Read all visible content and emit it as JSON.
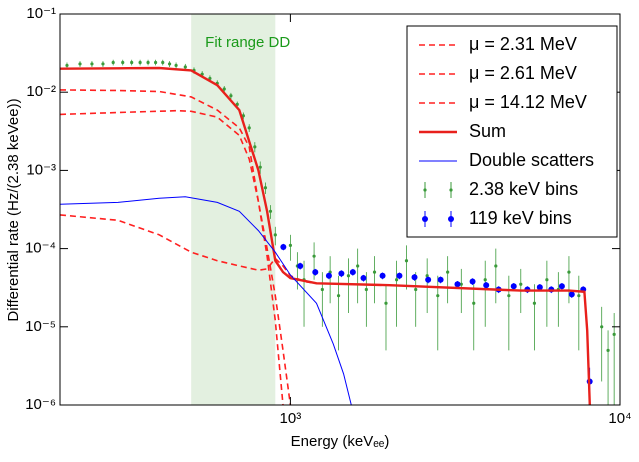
{
  "chart_data": {
    "type": "line",
    "xlabel": "Energy (keVₑₑ)",
    "ylabel": "Differential rate (Hz/(2.38 keVee))",
    "xscale": "log",
    "yscale": "log",
    "xlim": [
      200,
      10000
    ],
    "ylim": [
      1e-06,
      0.1
    ],
    "xticks": [
      {
        "value": 1000,
        "label": "10³"
      },
      {
        "value": 10000,
        "label": "10⁴"
      }
    ],
    "yticks": [
      {
        "value": 1e-06,
        "label": "10⁻⁶"
      },
      {
        "value": 1e-05,
        "label": "10⁻⁵"
      },
      {
        "value": 0.0001,
        "label": "10⁻⁴"
      },
      {
        "value": 0.001,
        "label": "10⁻³"
      },
      {
        "value": 0.01,
        "label": "10⁻²"
      },
      {
        "value": 0.1,
        "label": "10⁻¹"
      }
    ],
    "span": {
      "label": "Fit range DD",
      "x": [
        500,
        900
      ],
      "color": "#e3f0e0",
      "text_color": "#1a9a1a"
    },
    "legend": "upper right",
    "series": [
      {
        "name": "μ = 2.31 MeV",
        "style": "dashed",
        "color": "#ff2020",
        "x": [
          200,
          300,
          400,
          500,
          600,
          700,
          750,
          800,
          850,
          900,
          950
        ],
        "values": [
          0.0107,
          0.0105,
          0.0102,
          0.0087,
          0.0059,
          0.0035,
          0.002,
          0.0004,
          8e-05,
          1.2e-05,
          1e-06
        ]
      },
      {
        "name": "μ = 2.61 MeV",
        "style": "dashed",
        "color": "#ff2020",
        "x": [
          200,
          300,
          450,
          500,
          600,
          700,
          750,
          800,
          850,
          900,
          950,
          1000
        ],
        "values": [
          0.0052,
          0.0055,
          0.0058,
          0.0057,
          0.0048,
          0.0028,
          0.0014,
          0.0004,
          0.0001,
          2.5e-05,
          5e-06,
          1e-06
        ]
      },
      {
        "name": "μ = 14.12 MeV",
        "style": "dashed",
        "color": "#ff2020",
        "x": [
          200,
          300,
          400,
          500,
          600,
          700,
          800,
          850,
          900,
          950,
          1000,
          1100,
          1200,
          2000,
          5000,
          7000,
          7800,
          7950,
          8100
        ],
        "values": [
          0.00027,
          0.00023,
          0.00015,
          9e-05,
          7e-05,
          6e-05,
          5.3e-05,
          5.5e-05,
          7.5e-05,
          6e-05,
          4.5e-05,
          3.8e-05,
          3.6e-05,
          3.4e-05,
          2.9e-05,
          2.9e-05,
          2.8e-05,
          9e-06,
          1e-06
        ]
      },
      {
        "name": "Sum",
        "style": "solid",
        "color": "#e8201c",
        "x": [
          200,
          300,
          400,
          500,
          600,
          700,
          800,
          850,
          900,
          950,
          1000,
          1200,
          2000,
          5000,
          7000,
          7800,
          7950,
          8100
        ],
        "values": [
          0.02,
          0.0202,
          0.0204,
          0.019,
          0.0123,
          0.0059,
          0.001,
          0.0003,
          7e-05,
          5e-05,
          4.2e-05,
          3.6e-05,
          3.4e-05,
          2.9e-05,
          2.9e-05,
          2.8e-05,
          9e-06,
          1e-06
        ]
      },
      {
        "name": "Double scatters",
        "style": "thin",
        "color": "#0000ff",
        "x": [
          200,
          300,
          400,
          480,
          600,
          700,
          800,
          900,
          1000,
          1200,
          1350,
          1450,
          1530
        ],
        "values": [
          0.00037,
          0.00039,
          0.00044,
          0.00046,
          0.00039,
          0.0003,
          0.00017,
          9e-05,
          4.6e-05,
          2e-05,
          6e-06,
          2.5e-06,
          1e-06
        ]
      },
      {
        "name": "2.38 keV bins",
        "style": "errorbar",
        "color": "#3a9a3a",
        "marker_size": 1.6,
        "x": [
          210,
          230,
          250,
          270,
          290,
          310,
          330,
          350,
          370,
          390,
          410,
          430,
          450,
          480,
          510,
          540,
          570,
          600,
          630,
          660,
          690,
          720,
          750,
          780,
          810,
          840,
          870,
          900,
          1000,
          1050,
          1100,
          1180,
          1250,
          1320,
          1400,
          1500,
          1600,
          1700,
          1800,
          1950,
          2100,
          2250,
          2400,
          2600,
          2800,
          3000,
          3300,
          3600,
          3900,
          4200,
          4600,
          5000,
          5500,
          6000,
          6500,
          7000,
          7500,
          8800,
          9200,
          9600
        ],
        "values": [
          0.022,
          0.023,
          0.023,
          0.023,
          0.024,
          0.024,
          0.024,
          0.024,
          0.024,
          0.024,
          0.024,
          0.023,
          0.022,
          0.021,
          0.019,
          0.017,
          0.015,
          0.013,
          0.011,
          0.009,
          0.007,
          0.005,
          0.0035,
          0.002,
          0.0011,
          0.0006,
          0.0003,
          0.00015,
          0.00011,
          6e-05,
          4e-05,
          8e-05,
          3e-05,
          5e-05,
          2.5e-05,
          4.5e-05,
          6e-05,
          3e-05,
          5e-05,
          2e-05,
          4e-05,
          7e-05,
          3e-05,
          4.5e-05,
          2.5e-05,
          5e-05,
          3.5e-05,
          2e-05,
          4e-05,
          6e-05,
          2.5e-05,
          3.5e-05,
          2e-05,
          4e-05,
          3e-05,
          5e-05,
          2.5e-05,
          1e-05,
          5e-06,
          8e-06
        ],
        "errors": [
          0.002,
          0.002,
          0.002,
          0.002,
          0.002,
          0.002,
          0.002,
          0.002,
          0.002,
          0.002,
          0.002,
          0.002,
          0.002,
          0.002,
          0.0018,
          0.0016,
          0.0014,
          0.0012,
          0.001,
          0.0008,
          0.0006,
          0.0005,
          0.0004,
          0.0003,
          0.0002,
          0.0001,
          6e-05,
          4e-05,
          4e-05,
          3e-05,
          3e-05,
          4e-05,
          2e-05,
          3e-05,
          2e-05,
          3e-05,
          4e-05,
          2e-05,
          3e-05,
          1.5e-05,
          3e-05,
          4e-05,
          2e-05,
          3e-05,
          2e-05,
          3e-05,
          2e-05,
          1.5e-05,
          3e-05,
          4e-05,
          2e-05,
          2e-05,
          1.5e-05,
          3e-05,
          2e-05,
          3e-05,
          2e-05,
          8e-06,
          4e-06,
          7e-06
        ]
      },
      {
        "name": "119 keV bins",
        "style": "errorbar",
        "color": "#0000ff",
        "marker_size": 3,
        "x": [
          952,
          1071,
          1190,
          1309,
          1428,
          1547,
          1666,
          1904,
          2142,
          2380,
          2618,
          2856,
          3213,
          3570,
          3927,
          4284,
          4760,
          5236,
          5712,
          6188,
          6664,
          7140,
          7735,
          8092
        ],
        "values": [
          0.000105,
          6e-05,
          5e-05,
          4.5e-05,
          4.8e-05,
          5e-05,
          4.2e-05,
          4.5e-05,
          4.5e-05,
          4.3e-05,
          4e-05,
          4e-05,
          3.5e-05,
          3.8e-05,
          3.4e-05,
          3e-05,
          3.3e-05,
          3e-05,
          3.2e-05,
          3e-05,
          3.3e-05,
          2.6e-05,
          3e-05,
          2e-06
        ],
        "errors": [
          1e-05,
          6e-06,
          5e-06,
          4.5e-06,
          4.8e-06,
          5e-06,
          4.2e-06,
          4.5e-06,
          4.5e-06,
          4.3e-06,
          4e-06,
          4e-06,
          3.5e-06,
          3.8e-06,
          3.4e-06,
          3e-06,
          3.3e-06,
          3e-06,
          3.2e-06,
          3e-06,
          3.3e-06,
          2.6e-06,
          3e-06,
          1e-06
        ]
      }
    ]
  }
}
